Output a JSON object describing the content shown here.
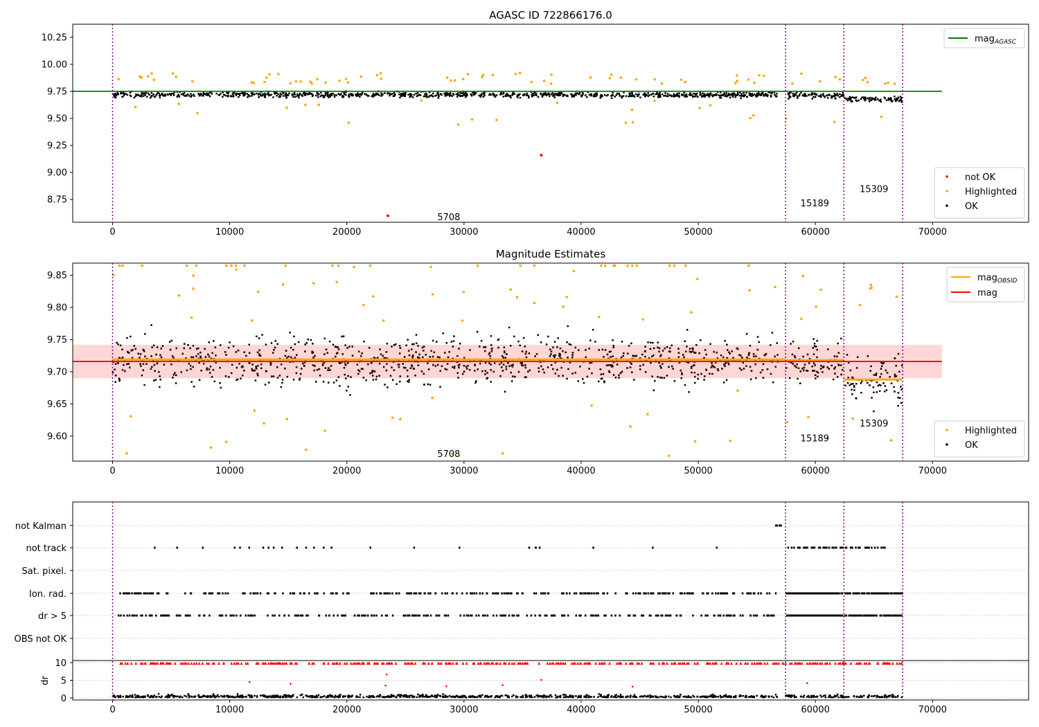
{
  "chart_data": [
    {
      "type": "scatter",
      "title": "AGASC ID 722866176.0",
      "xlim": [
        -3400,
        78200
      ],
      "ylim": [
        8.54,
        10.37
      ],
      "xticks": [
        0,
        10000,
        20000,
        30000,
        40000,
        50000,
        60000,
        70000
      ],
      "yticks": [
        8.75,
        9.0,
        9.25,
        9.5,
        9.75,
        10.0,
        10.25
      ],
      "ytick_labels": [
        "8.75",
        "9.00",
        "9.25",
        "9.50",
        "9.75",
        "10.00",
        "10.25"
      ],
      "hlines": [
        {
          "name": "mag_AGASC",
          "label": "mag",
          "sub": "AGASC",
          "y": 9.75,
          "x": [
            -3400,
            70800
          ],
          "color": "#008000"
        }
      ],
      "legend_lines": {
        "position": "top-right"
      },
      "legend_points": {
        "position": "bottom-right",
        "items": [
          {
            "label": "not OK",
            "color": "#ff0000"
          },
          {
            "label": "Highlighted",
            "color": "#ffa500"
          },
          {
            "label": "OK",
            "color": "#000000"
          }
        ]
      },
      "annotations": [
        {
          "text": "5708",
          "x": 28700,
          "y": 8.59
        },
        {
          "text": "15189",
          "x": 59950,
          "y": 8.72
        },
        {
          "text": "15309",
          "x": 65000,
          "y": 8.85
        }
      ],
      "ok_segments": [
        {
          "x": [
            0,
            56800
          ],
          "mean": 9.72,
          "spread": 0.03
        },
        {
          "x": [
            57500,
            62400
          ],
          "mean": 9.715,
          "spread": 0.03
        },
        {
          "x": [
            62500,
            67400
          ],
          "mean": 9.68,
          "spread": 0.03
        }
      ],
      "not_ok_points": [
        [
          23500,
          8.6
        ],
        [
          36600,
          9.16
        ]
      ]
    },
    {
      "type": "scatter",
      "title": "Magnitude Estimates",
      "xlim": [
        -3400,
        78200
      ],
      "ylim": [
        9.561,
        9.869
      ],
      "xticks": [
        0,
        10000,
        20000,
        30000,
        40000,
        50000,
        60000,
        70000
      ],
      "yticks": [
        9.6,
        9.65,
        9.7,
        9.75,
        9.8,
        9.85
      ],
      "ytick_labels": [
        "9.60",
        "9.65",
        "9.70",
        "9.75",
        "9.80",
        "9.85"
      ],
      "hlines": [
        {
          "name": "mag_OBSID",
          "label": "mag",
          "sub": "OBSID",
          "color": "#ffa500",
          "segments": [
            {
              "x": [
                0,
                57400
              ],
              "y": 9.719
            },
            {
              "x": [
                57400,
                62400
              ],
              "y": 9.718
            },
            {
              "x": [
                62400,
                67400
              ],
              "y": 9.688
            }
          ]
        },
        {
          "name": "mag",
          "label": "mag",
          "sub": "",
          "color": "#ff0000",
          "y": 9.716,
          "x": [
            -3400,
            70800
          ],
          "band": [
            9.69,
            9.742
          ]
        }
      ],
      "legend_lines": {
        "position": "top-right"
      },
      "legend_points": {
        "position": "bottom-right",
        "items": [
          {
            "label": "Highlighted",
            "color": "#ffa500"
          },
          {
            "label": "OK",
            "color": "#000000"
          }
        ]
      },
      "annotations": [
        {
          "text": "5708",
          "x": 28700,
          "y": 9.573
        },
        {
          "text": "15189",
          "x": 59950,
          "y": 9.597
        },
        {
          "text": "15309",
          "x": 65000,
          "y": 9.62
        }
      ],
      "ok_segments": [
        {
          "x": [
            0,
            56800
          ],
          "mean": 9.718,
          "spread": 0.045
        },
        {
          "x": [
            57500,
            62400
          ],
          "mean": 9.715,
          "spread": 0.04
        },
        {
          "x": [
            62500,
            67400
          ],
          "mean": 9.688,
          "spread": 0.045
        }
      ]
    },
    {
      "type": "scatter",
      "title": "",
      "xlim": [
        -3400,
        78200
      ],
      "flag_rows": [
        "OBS not OK",
        "dr > 5",
        "Ion. rad.",
        "Sat. pixel.",
        "not track",
        "not Kalman"
      ],
      "dr_ylabel": "dr",
      "dr_yticks": [
        0,
        5,
        10
      ],
      "dr_ylim": [
        -1,
        10.5
      ],
      "xticks": [
        0,
        10000,
        20000,
        30000,
        40000,
        50000,
        60000,
        70000
      ]
    }
  ],
  "obsid_boundaries": [
    0,
    57450,
    62430,
    67450
  ],
  "vline_color": "#800080"
}
